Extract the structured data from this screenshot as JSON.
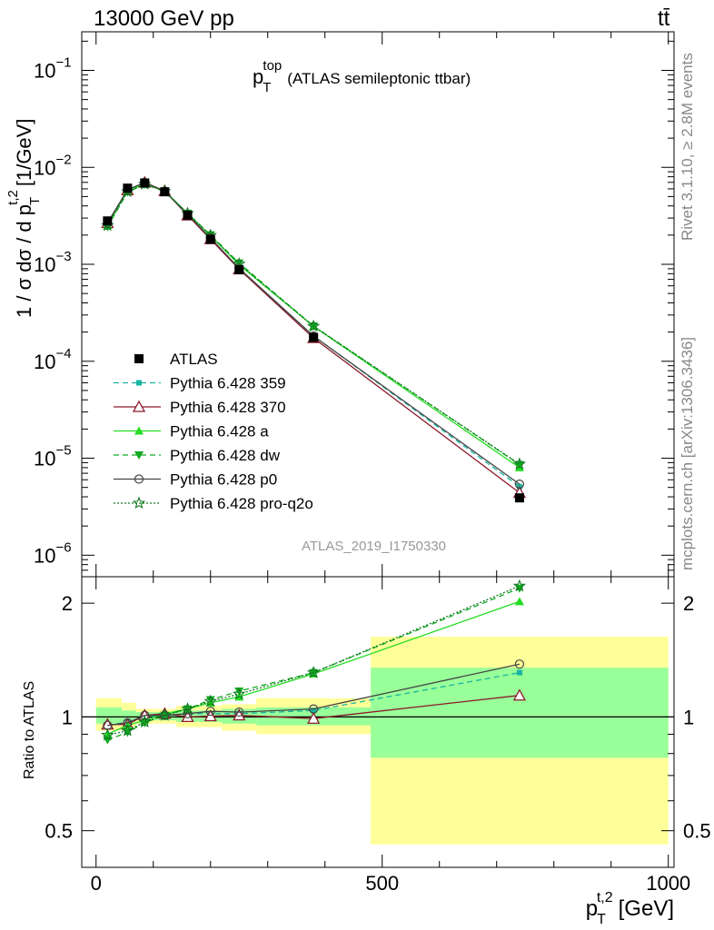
{
  "header": {
    "left": "13000 GeV pp",
    "right": "tt̄"
  },
  "side": {
    "rivet": "Rivet 3.1.10, ≥ 2.8M events",
    "mcplots": "mcplots.cern.ch [arXiv:1306.3436]"
  },
  "chart_data": [
    {
      "type": "line",
      "title_main": "p",
      "title_sup": "top",
      "title_sub": "T",
      "title_rest": "(ATLAS semileptonic ttbar)",
      "analysis": "ATLAS_2019_I1750330",
      "ylabel_parts": {
        "a": "1 / σ dσ / d p",
        "sup": "t,2",
        "sub": "T",
        "b": "[1/GeV]"
      },
      "yscale": "log",
      "ylim": [
        6e-07,
        0.25
      ],
      "xlim": [
        -25,
        1010
      ],
      "yticks": [
        {
          "base": "10",
          "exp": "−1",
          "v": 0.1
        },
        {
          "base": "10",
          "exp": "−2",
          "v": 0.01
        },
        {
          "base": "10",
          "exp": "−3",
          "v": 0.001
        },
        {
          "base": "10",
          "exp": "−4",
          "v": 0.0001
        },
        {
          "base": "10",
          "exp": "−5",
          "v": 1e-05
        },
        {
          "base": "10",
          "exp": "−6",
          "v": 1e-06
        }
      ],
      "x": [
        20,
        55,
        85,
        120,
        160,
        200,
        250,
        380,
        740
      ],
      "data": {
        "name": "ATLAS",
        "values": [
          0.0028,
          0.0061,
          0.0069,
          0.0056,
          0.0032,
          0.00181,
          0.00088,
          0.000176,
          3.9e-06
        ]
      },
      "series": [
        {
          "name": "Pythia 6.428 359",
          "color": "#17b4a0",
          "dash": "6,4",
          "marker": "square-small",
          "values": [
            0.00266,
            0.00591,
            0.0069,
            0.00566,
            0.00326,
            0.00184,
            0.0009,
            0.000183,
            5.1e-06
          ]
        },
        {
          "name": "Pythia 6.428 370",
          "color": "#8b1a2b",
          "dash": "",
          "marker": "triangle-open",
          "values": [
            0.00267,
            0.00582,
            0.00697,
            0.00571,
            0.0032,
            0.00182,
            0.00089,
            0.000174,
            4.4e-06
          ]
        },
        {
          "name": "Pythia 6.428 a",
          "color": "#22dd22",
          "dash": "",
          "marker": "triangle-filled",
          "values": [
            0.00252,
            0.0058,
            0.00676,
            0.00572,
            0.00335,
            0.00198,
            0.00099,
            0.000229,
            8e-06
          ]
        },
        {
          "name": "Pythia 6.428 dw",
          "color": "#11aa22",
          "dash": "6,4",
          "marker": "triangle-down",
          "values": [
            0.00243,
            0.00555,
            0.00667,
            0.00566,
            0.00336,
            0.00201,
            0.00103,
            0.000231,
            8.6e-06
          ]
        },
        {
          "name": "Pythia 6.428 p0",
          "color": "#444444",
          "dash": "",
          "marker": "circle-open",
          "values": [
            0.00266,
            0.00588,
            0.00698,
            0.00567,
            0.00327,
            0.00187,
            0.00091,
            0.000182,
            5.4e-06
          ]
        },
        {
          "name": "Pythia 6.428 pro-q2o",
          "color": "#117722",
          "dash": "2,2",
          "marker": "star-open",
          "values": [
            0.00251,
            0.00562,
            0.00671,
            0.00566,
            0.00335,
            0.00199,
            0.00101,
            0.00023,
            8.7e-06
          ]
        }
      ]
    },
    {
      "type": "line",
      "ylabel": "Ratio to ATLAS",
      "xlabel_parts": {
        "a": "p",
        "sup": "t,2",
        "sub": "T",
        "b": "[GeV]"
      },
      "ylim": [
        0.4,
        2.35
      ],
      "xlim": [
        -25,
        1010
      ],
      "yticks": [
        0.5,
        1,
        2
      ],
      "ytick_labels": [
        "0.5",
        "1",
        "2"
      ],
      "xticks": [
        0,
        500,
        1000
      ],
      "xtick_labels": [
        "0",
        "500",
        "1000"
      ],
      "bands": [
        {
          "x0": 0,
          "x1": 45,
          "inner": [
            0.96,
            1.06
          ],
          "outer": [
            0.92,
            1.12
          ]
        },
        {
          "x0": 45,
          "x1": 70,
          "inner": [
            0.97,
            1.04
          ],
          "outer": [
            0.94,
            1.09
          ]
        },
        {
          "x0": 70,
          "x1": 100,
          "inner": [
            0.98,
            1.03
          ],
          "outer": [
            0.96,
            1.05
          ]
        },
        {
          "x0": 100,
          "x1": 140,
          "inner": [
            0.98,
            1.03
          ],
          "outer": [
            0.96,
            1.05
          ]
        },
        {
          "x0": 140,
          "x1": 180,
          "inner": [
            0.97,
            1.04
          ],
          "outer": [
            0.94,
            1.07
          ]
        },
        {
          "x0": 180,
          "x1": 220,
          "inner": [
            0.97,
            1.04
          ],
          "outer": [
            0.94,
            1.07
          ]
        },
        {
          "x0": 220,
          "x1": 280,
          "inner": [
            0.96,
            1.05
          ],
          "outer": [
            0.92,
            1.08
          ]
        },
        {
          "x0": 280,
          "x1": 480,
          "inner": [
            0.95,
            1.06
          ],
          "outer": [
            0.9,
            1.12
          ]
        },
        {
          "x0": 480,
          "x1": 1000,
          "inner": [
            0.78,
            1.35
          ],
          "outer": [
            0.46,
            1.63
          ]
        }
      ],
      "x": [
        20,
        55,
        85,
        120,
        160,
        200,
        250,
        380,
        740
      ],
      "series": [
        {
          "name": "Pythia 6.428 359",
          "values": [
            0.95,
            0.97,
            1.0,
            1.01,
            1.02,
            1.02,
            1.02,
            1.04,
            1.31
          ]
        },
        {
          "name": "Pythia 6.428 370",
          "values": [
            0.955,
            0.955,
            1.01,
            1.02,
            1.0,
            1.005,
            1.01,
            0.99,
            1.14
          ]
        },
        {
          "name": "Pythia 6.428 a",
          "values": [
            0.9,
            0.95,
            0.98,
            1.02,
            1.05,
            1.09,
            1.13,
            1.3,
            2.02
          ]
        },
        {
          "name": "Pythia 6.428 dw",
          "values": [
            0.87,
            0.91,
            0.965,
            1.01,
            1.05,
            1.11,
            1.17,
            1.31,
            2.19
          ]
        },
        {
          "name": "Pythia 6.428 p0",
          "values": [
            0.95,
            0.965,
            1.01,
            1.01,
            1.02,
            1.035,
            1.03,
            1.05,
            1.38
          ]
        },
        {
          "name": "Pythia 6.428 pro-q2o",
          "values": [
            0.895,
            0.92,
            0.97,
            1.01,
            1.05,
            1.1,
            1.15,
            1.31,
            2.22
          ]
        }
      ]
    }
  ]
}
